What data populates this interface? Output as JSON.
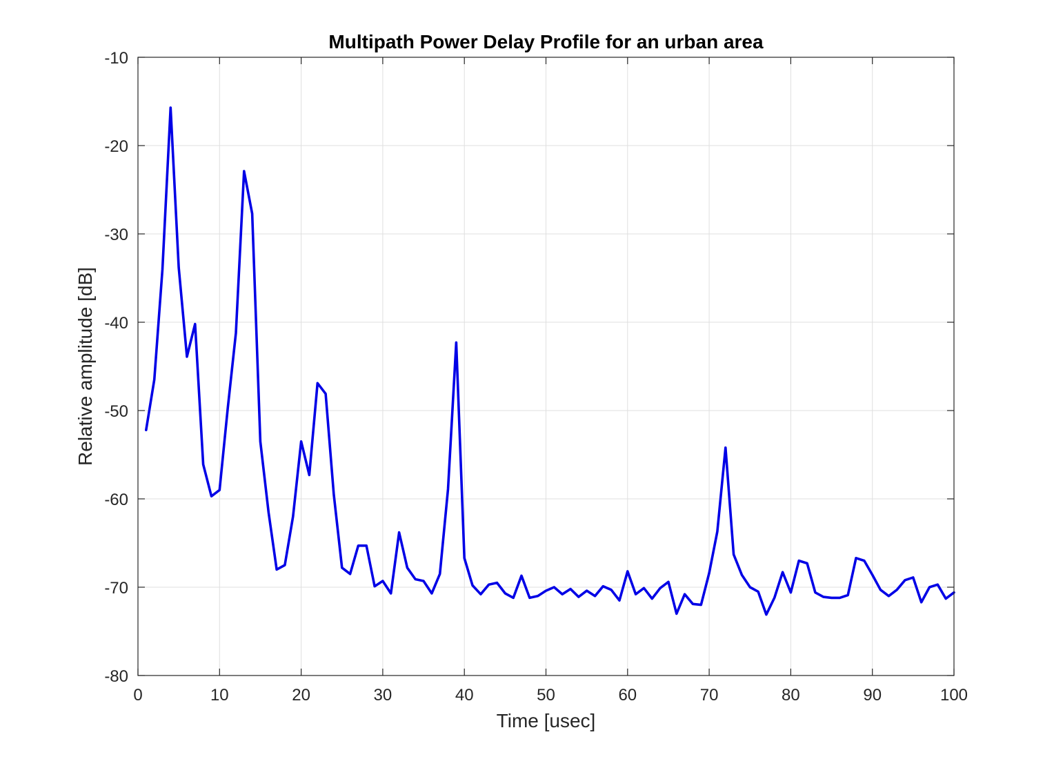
{
  "chart_data": {
    "type": "line",
    "title": "Multipath Power Delay Profile for an urban area",
    "xlabel": "Time [usec]",
    "ylabel": "Relative amplitude [dB]",
    "xlim": [
      0,
      100
    ],
    "ylim": [
      -80,
      -10
    ],
    "xticks": [
      0,
      10,
      20,
      30,
      40,
      50,
      60,
      70,
      80,
      90,
      100
    ],
    "xtick_labels": [
      "0",
      "10",
      "20",
      "30",
      "40",
      "50",
      "60",
      "70",
      "80",
      "90",
      "100"
    ],
    "yticks": [
      -80,
      -70,
      -60,
      -50,
      -40,
      -30,
      -20,
      -10
    ],
    "ytick_labels": [
      "-80",
      "-70",
      "-60",
      "-50",
      "-40",
      "-30",
      "-20",
      "-10"
    ],
    "grid": true,
    "line_color": "#0000e6",
    "series": [
      {
        "x": [
          1,
          2,
          3,
          4,
          5,
          6,
          7,
          8,
          9,
          10,
          11,
          12,
          13,
          14,
          15,
          16,
          17,
          18,
          19,
          20,
          21,
          22,
          23,
          24,
          25,
          26,
          27,
          28,
          29,
          30,
          31,
          32,
          33,
          34,
          35,
          36,
          37,
          38,
          39,
          40,
          41,
          42,
          43,
          44,
          45,
          46,
          47,
          48,
          49,
          50,
          51,
          52,
          53,
          54,
          55,
          56,
          57,
          58,
          59,
          60,
          61,
          62,
          63,
          64,
          65,
          66,
          67,
          68,
          69,
          70,
          71,
          72,
          73,
          74,
          75,
          76,
          77,
          78,
          79,
          80,
          81,
          82,
          83,
          84,
          85,
          86,
          87,
          88,
          89,
          90,
          91,
          92,
          93,
          94,
          95,
          96,
          97,
          98,
          99,
          100
        ],
        "values": [
          -52.2,
          -46.5,
          -34.0,
          -15.7,
          -33.8,
          -43.9,
          -40.2,
          -56.1,
          -59.7,
          -59.0,
          -49.8,
          -41.2,
          -22.9,
          -27.7,
          -53.5,
          -61.5,
          -68.0,
          -67.5,
          -62.0,
          -53.5,
          -57.3,
          -46.9,
          -48.1,
          -59.5,
          -67.8,
          -68.5,
          -65.3,
          -65.3,
          -69.9,
          -69.3,
          -70.7,
          -63.8,
          -67.8,
          -69.1,
          -69.3,
          -70.7,
          -68.5,
          -58.9,
          -42.3,
          -66.7,
          -69.8,
          -70.8,
          -69.7,
          -69.5,
          -70.7,
          -71.2,
          -68.7,
          -71.2,
          -71.0,
          -70.4,
          -70.0,
          -70.8,
          -70.2,
          -71.1,
          -70.4,
          -71.0,
          -69.9,
          -70.3,
          -71.5,
          -68.2,
          -70.8,
          -70.1,
          -71.3,
          -70.1,
          -69.4,
          -73.0,
          -70.8,
          -71.9,
          -72.0,
          -68.4,
          -63.7,
          -54.2,
          -66.3,
          -68.6,
          -70.0,
          -70.5,
          -73.1,
          -71.2,
          -68.3,
          -70.6,
          -67.0,
          -67.3,
          -70.6,
          -71.1,
          -71.2,
          -71.2,
          -70.9,
          -66.7,
          -67.0,
          -68.6,
          -70.3,
          -71.0,
          -70.3,
          -69.2,
          -68.9,
          -71.7,
          -70.0,
          -69.7,
          -71.3,
          -70.6
        ]
      }
    ]
  }
}
